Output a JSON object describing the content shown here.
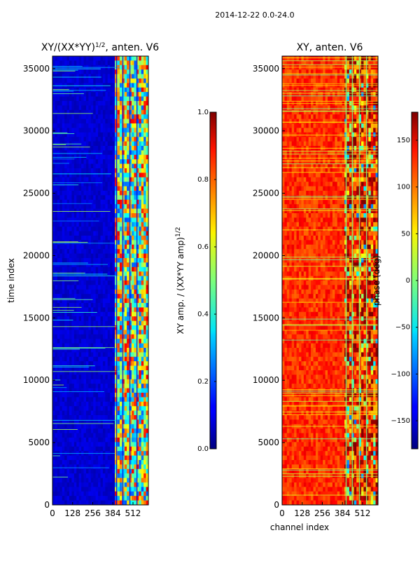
{
  "suptitle": "2014-12-22 0.0-24.0",
  "chart_data": [
    {
      "type": "heatmap",
      "title_main": "XY/(XX*YY)",
      "title_sup": "1/2",
      "title_tail": ", anten. V6",
      "ylabel": "time index",
      "xlabel": "",
      "xlim": [
        0,
        610
      ],
      "ylim": [
        0,
        36000
      ],
      "xticks": [
        0,
        128,
        256,
        384,
        512
      ],
      "yticks": [
        0,
        5000,
        10000,
        15000,
        20000,
        25000,
        30000,
        35000
      ],
      "colorbar": {
        "label_main": "XY amp. / (XX*YY amp)",
        "label_sup": "1/2",
        "vmin": 0.0,
        "vmax": 1.0,
        "ticks": [
          "0.0",
          "0.2",
          "0.4",
          "0.6",
          "0.8",
          "1.0"
        ],
        "tick_values": [
          0.0,
          0.2,
          0.4,
          0.6,
          0.8,
          1.0
        ]
      },
      "colormap": "jet",
      "description_values": {
        "low_channels_level": 0.08,
        "high_channels_level": 0.55,
        "high_channel_start": 384
      }
    },
    {
      "type": "heatmap",
      "title": "XY, anten. V6",
      "ylabel": "",
      "xlabel": "channel index",
      "xlim": [
        0,
        610
      ],
      "ylim": [
        0,
        36000
      ],
      "xticks": [
        0,
        128,
        256,
        384,
        512
      ],
      "yticks": [
        0,
        5000,
        10000,
        15000,
        20000,
        25000,
        30000,
        35000
      ],
      "colorbar": {
        "label": "phase (deg)",
        "vmin": -180,
        "vmax": 180,
        "ticks": [
          "−150",
          "−100",
          "−50",
          "0",
          "50",
          "100",
          "150"
        ],
        "tick_values": [
          -150,
          -100,
          -50,
          0,
          50,
          100,
          150
        ]
      },
      "colormap": "jet",
      "description_values": {
        "dominant_phase": 120,
        "high_channel_start": 384
      }
    }
  ]
}
